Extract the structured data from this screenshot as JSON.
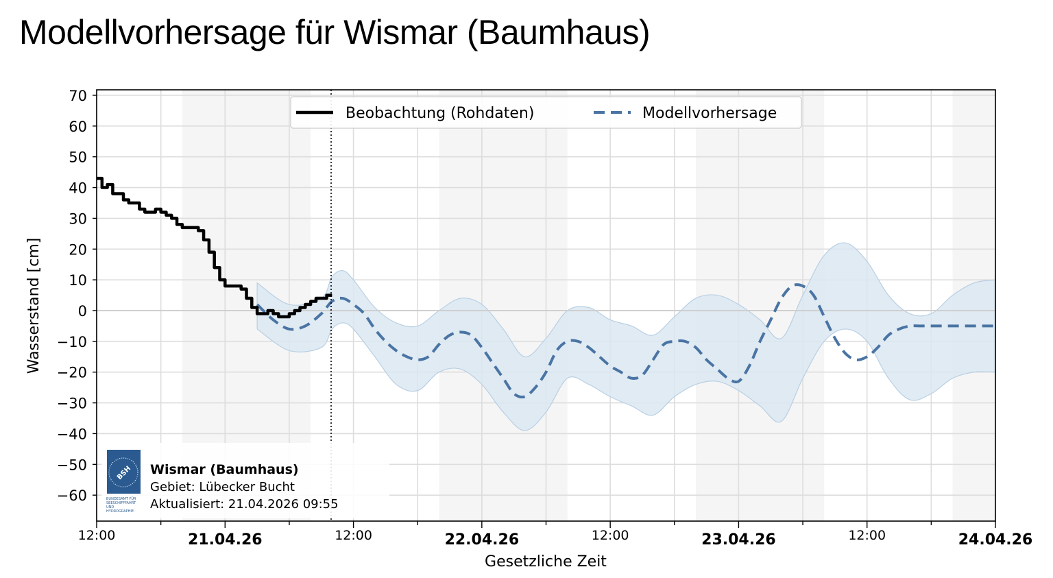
{
  "page": {
    "title": "Modellvorhersage für Wismar (Baumhaus)"
  },
  "legend": {
    "observation_label": "Beobachtung (Rohdaten)",
    "forecast_label": "Modellvorhersage"
  },
  "axes": {
    "ylabel": "Wasserstand [cm]",
    "xlabel": "Gesetzliche Zeit",
    "yticks": [
      "70",
      "60",
      "50",
      "40",
      "30",
      "20",
      "10",
      "0",
      "−10",
      "−20",
      "−30",
      "−40",
      "−50",
      "−60"
    ],
    "xticks": [
      {
        "label": "12:00",
        "bold": false
      },
      {
        "label": "21.04.26",
        "bold": true
      },
      {
        "label": "12:00",
        "bold": false
      },
      {
        "label": "22.04.26",
        "bold": true
      },
      {
        "label": "12:00",
        "bold": false
      },
      {
        "label": "23.04.26",
        "bold": true
      },
      {
        "label": "12:00",
        "bold": false
      },
      {
        "label": "24.04.26",
        "bold": true
      }
    ]
  },
  "info_box": {
    "station": "Wismar (Baumhaus)",
    "area": "Gebiet: Lübecker Bucht",
    "updated": "Aktualisiert: 21.04.2026 09:55",
    "logo_abbr": "BSH",
    "logo_lines": [
      "BUNDESAMT FÜR",
      "SEESCHIFFFAHRT",
      "UND",
      "HYDROGRAPHIE"
    ]
  },
  "colors": {
    "observation": "#000000",
    "forecast": "#4a74a3",
    "band_fill": "#dbe7f2",
    "band_edge": "#b9cfe3",
    "night_shade": "#f5f5f5",
    "grid": "#dddddd",
    "logo_bg": "#2a5a8f"
  },
  "chart_data": {
    "type": "line",
    "title": "Modellvorhersage für Wismar (Baumhaus)",
    "xlabel": "Gesetzliche Zeit",
    "ylabel": "Wasserstand [cm]",
    "ylim": [
      -68,
      72
    ],
    "xlim": [
      "20.04.26 12:00",
      "24.04.26 00:00"
    ],
    "grid": true,
    "legend_position": "upper center",
    "now_marker": "21.04.26 09:55",
    "x_hours_from_start_unit": "hours since 20.04.26 12:00",
    "series": [
      {
        "name": "Beobachtung (Rohdaten)",
        "style": "solid black",
        "x": [
          0,
          0.5,
          1,
          1.5,
          2,
          2.5,
          3,
          3.5,
          4,
          4.5,
          5,
          5.5,
          6,
          6.5,
          7,
          7.5,
          8,
          8.5,
          9,
          9.5,
          10,
          10.5,
          11,
          11.5,
          12,
          12.5,
          13,
          13.5,
          14,
          14.5,
          15,
          15.5,
          16,
          16.5,
          17,
          17.5,
          18,
          18.5,
          19,
          19.5,
          20,
          20.5,
          21,
          21.5,
          22
        ],
        "values": [
          43,
          40,
          41,
          38,
          38,
          36,
          35,
          35,
          33,
          32,
          32,
          33,
          32,
          31,
          30,
          28,
          27,
          27,
          27,
          26,
          23,
          19,
          14,
          10,
          8,
          8,
          8,
          7,
          4,
          1,
          -1,
          -1,
          0,
          -1,
          -2,
          -2,
          -1,
          0,
          1,
          2,
          3,
          4,
          4,
          5,
          5
        ]
      },
      {
        "name": "Modellvorhersage",
        "style": "dashed",
        "x": [
          15,
          16.5,
          18,
          19.5,
          21,
          22,
          23,
          24,
          25,
          26,
          27,
          28,
          29,
          30,
          31,
          32,
          33,
          34,
          35,
          36,
          37,
          38,
          39,
          40,
          41,
          42,
          43,
          44,
          45,
          46,
          47,
          48,
          49,
          50,
          51,
          52,
          53,
          54,
          55,
          56,
          57,
          58,
          59,
          60,
          61,
          62,
          63,
          64,
          65,
          66,
          67,
          68,
          69,
          70,
          71,
          72,
          73,
          74,
          75,
          76,
          77,
          78,
          79,
          80,
          81,
          82,
          83,
          84
        ],
        "values": [
          2,
          -3,
          -6,
          -5,
          -1,
          3,
          4,
          2,
          -1,
          -6,
          -10,
          -13,
          -15,
          -16,
          -15,
          -11,
          -8,
          -7,
          -8,
          -12,
          -17,
          -22,
          -27,
          -28,
          -25,
          -20,
          -13,
          -10,
          -10,
          -12,
          -15,
          -18,
          -20,
          -22,
          -21,
          -16,
          -11,
          -10,
          -10,
          -12,
          -16,
          -19,
          -22,
          -23,
          -18,
          -10,
          -3,
          4,
          8,
          8,
          5,
          -2,
          -9,
          -14,
          -16,
          -15,
          -12,
          -8,
          -6,
          -5,
          -5,
          -5,
          -5,
          -5,
          -5,
          -5,
          -5,
          -5
        ]
      },
      {
        "name": "Unsicherheitsband (oben)",
        "x": [
          15,
          18,
          21,
          22,
          23,
          24,
          26,
          28,
          30,
          32,
          34,
          36,
          38,
          40,
          42,
          44,
          46,
          48,
          50,
          52,
          54,
          56,
          58,
          60,
          62,
          64,
          66,
          68,
          70,
          72,
          74,
          76,
          78,
          80,
          82,
          84
        ],
        "values": [
          9,
          2,
          4,
          11,
          13,
          10,
          1,
          -4,
          -5,
          0,
          4,
          2,
          -6,
          -15,
          -9,
          0,
          1,
          -3,
          -5,
          -8,
          -2,
          4,
          5,
          2,
          -3,
          -9,
          5,
          18,
          22,
          16,
          5,
          -1,
          -1,
          5,
          9,
          10
        ]
      },
      {
        "name": "Unsicherheitsband (unten)",
        "x": [
          15,
          18,
          21,
          22,
          23,
          24,
          26,
          28,
          30,
          32,
          34,
          36,
          38,
          40,
          42,
          44,
          46,
          48,
          50,
          52,
          54,
          56,
          58,
          60,
          62,
          64,
          66,
          68,
          70,
          72,
          74,
          76,
          78,
          80,
          82,
          84
        ],
        "values": [
          -6,
          -13,
          -12,
          -6,
          -4,
          -6,
          -15,
          -24,
          -26,
          -20,
          -19,
          -24,
          -33,
          -39,
          -33,
          -22,
          -24,
          -28,
          -31,
          -34,
          -28,
          -24,
          -23,
          -26,
          -31,
          -36,
          -22,
          -10,
          -6,
          -10,
          -22,
          -29,
          -27,
          -22,
          -20,
          -20
        ]
      }
    ],
    "night_shading_hours": [
      [
        8,
        20
      ],
      [
        32,
        44
      ],
      [
        56,
        68
      ],
      [
        80,
        84
      ]
    ]
  }
}
